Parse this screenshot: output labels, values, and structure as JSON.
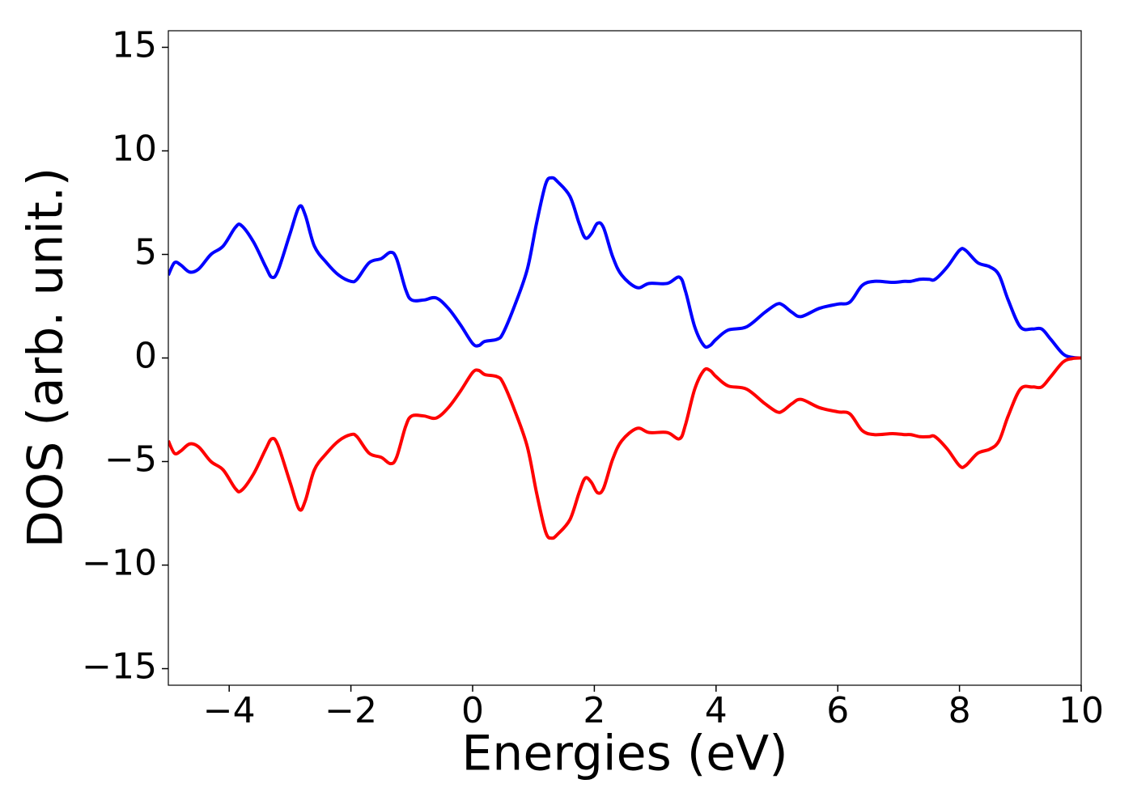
{
  "chart_data": {
    "type": "line",
    "xlabel": "Energies (eV)",
    "ylabel": "DOS (arb. unit.)",
    "xlim": [
      -5,
      10
    ],
    "ylim": [
      -15.8,
      15.8
    ],
    "xticks": [
      {
        "value": -4,
        "label": "−4"
      },
      {
        "value": -2,
        "label": "−2"
      },
      0,
      2,
      4,
      6,
      8,
      10
    ],
    "yticks": [
      {
        "value": -15,
        "label": "−15"
      },
      {
        "value": -10,
        "label": "−10"
      },
      {
        "value": -5,
        "label": "−5"
      },
      0,
      5,
      10,
      15
    ],
    "x": [
      -5,
      -4.9,
      -4.8,
      -4.65,
      -4.5,
      -4.3,
      -4.1,
      -3.9,
      -3.8,
      -3.6,
      -3.4,
      -3.3,
      -3.2,
      -3.0,
      -2.85,
      -2.75,
      -2.6,
      -2.4,
      -2.2,
      -2.0,
      -1.9,
      -1.7,
      -1.5,
      -1.35,
      -1.25,
      -1.1,
      -1.0,
      -0.8,
      -0.6,
      -0.4,
      -0.2,
      0.0,
      0.1,
      0.2,
      0.4,
      0.5,
      0.7,
      0.9,
      1.05,
      1.2,
      1.3,
      1.4,
      1.6,
      1.75,
      1.85,
      1.95,
      2.05,
      2.15,
      2.3,
      2.45,
      2.7,
      2.9,
      3.2,
      3.4,
      3.5,
      3.65,
      3.8,
      3.9,
      4.0,
      4.2,
      4.5,
      4.8,
      5.0,
      5.1,
      5.25,
      5.4,
      5.7,
      6.0,
      6.2,
      6.4,
      6.6,
      6.9,
      7.1,
      7.2,
      7.35,
      7.5,
      7.6,
      7.8,
      8.0,
      8.1,
      8.3,
      8.5,
      8.65,
      8.8,
      9.0,
      9.2,
      9.35,
      9.5,
      9.7,
      9.85,
      10
    ],
    "series": [
      {
        "color": "#0000ff",
        "values": [
          4.0,
          4.6,
          4.5,
          4.15,
          4.3,
          5.0,
          5.4,
          6.3,
          6.4,
          5.6,
          4.4,
          3.9,
          4.2,
          6.0,
          7.3,
          6.9,
          5.4,
          4.6,
          4.0,
          3.7,
          3.8,
          4.6,
          4.8,
          5.1,
          4.8,
          3.3,
          2.8,
          2.8,
          2.9,
          2.4,
          1.6,
          0.7,
          0.6,
          0.8,
          0.9,
          1.2,
          2.6,
          4.3,
          6.5,
          8.4,
          8.7,
          8.5,
          7.8,
          6.5,
          5.8,
          6.0,
          6.5,
          6.3,
          4.9,
          4.0,
          3.4,
          3.6,
          3.6,
          3.9,
          3.2,
          1.5,
          0.6,
          0.6,
          0.9,
          1.35,
          1.5,
          2.2,
          2.6,
          2.55,
          2.2,
          2.0,
          2.4,
          2.6,
          2.7,
          3.5,
          3.7,
          3.65,
          3.7,
          3.7,
          3.8,
          3.8,
          3.8,
          4.4,
          5.2,
          5.2,
          4.6,
          4.4,
          4.0,
          2.8,
          1.5,
          1.4,
          1.4,
          0.9,
          0.2,
          0.03,
          0
        ]
      },
      {
        "color": "#ff0000",
        "values": [
          -4.0,
          -4.6,
          -4.5,
          -4.15,
          -4.3,
          -5.0,
          -5.4,
          -6.3,
          -6.4,
          -5.6,
          -4.4,
          -3.9,
          -4.2,
          -6.0,
          -7.3,
          -6.9,
          -5.4,
          -4.6,
          -4.0,
          -3.7,
          -3.8,
          -4.6,
          -4.8,
          -5.1,
          -4.8,
          -3.3,
          -2.8,
          -2.8,
          -2.9,
          -2.4,
          -1.6,
          -0.7,
          -0.6,
          -0.8,
          -0.9,
          -1.2,
          -2.6,
          -4.3,
          -6.5,
          -8.4,
          -8.7,
          -8.5,
          -7.8,
          -6.5,
          -5.8,
          -6.0,
          -6.5,
          -6.3,
          -4.9,
          -4.0,
          -3.4,
          -3.6,
          -3.6,
          -3.9,
          -3.2,
          -1.5,
          -0.6,
          -0.6,
          -0.9,
          -1.35,
          -1.5,
          -2.2,
          -2.6,
          -2.55,
          -2.2,
          -2.0,
          -2.4,
          -2.6,
          -2.7,
          -3.5,
          -3.7,
          -3.65,
          -3.7,
          -3.7,
          -3.8,
          -3.8,
          -3.8,
          -4.4,
          -5.2,
          -5.2,
          -4.6,
          -4.4,
          -4.0,
          -2.8,
          -1.5,
          -1.4,
          -1.4,
          -0.9,
          -0.2,
          -0.03,
          0
        ]
      }
    ]
  }
}
